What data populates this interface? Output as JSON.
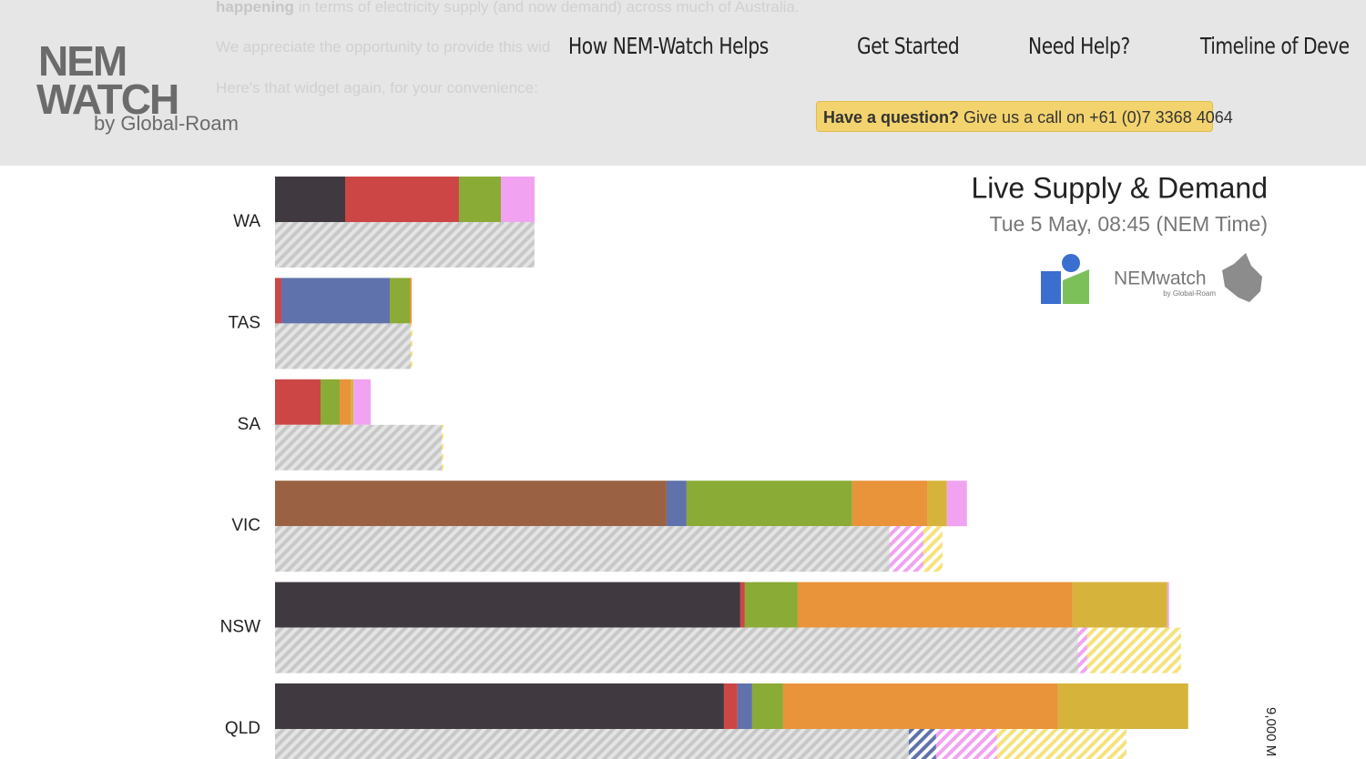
{
  "header": {
    "background_text": {
      "line1_bold": "happening",
      "line1": "in terms of electricity supply (and now demand) across much of Australia.",
      "line2": "We appreciate the opportunity to provide this wid",
      "line3": "Here's that widget again, for your convenience:"
    },
    "logo": {
      "top": "NEM",
      "bottom": "WATCH",
      "by": "by Global-Roam"
    },
    "nav": [
      "How NEM-Watch Helps",
      "Get Started",
      "Need Help?",
      "Timeline of Deve"
    ],
    "banner": {
      "bold": "Have a question?",
      "text": "Give us a call on +61 (0)7 3368 4064"
    }
  },
  "chart_data": {
    "type": "stacked-bar",
    "title": "Live Supply & Demand",
    "subtitle": "Tue 5 May, 08:45 (NEM Time)",
    "brand": {
      "name": "NEMwatch",
      "by": "by Global-Roam"
    },
    "categories": [
      "WA",
      "TAS",
      "SA",
      "VIC",
      "NSW",
      "QLD"
    ],
    "xlim": [
      0,
      9000
    ],
    "xticks": [
      {
        "value": 9000,
        "label": "9,000 M"
      }
    ],
    "series": [
      {
        "stack": "supply",
        "color": "#403a40",
        "values": [
          634,
          0,
          0,
          0,
          4207,
          4059
        ]
      },
      {
        "stack": "supply",
        "color": "#9a6242",
        "values": [
          0,
          0,
          0,
          3540,
          0,
          0
        ]
      },
      {
        "stack": "supply",
        "color": "#cc4646",
        "values": [
          1029,
          58,
          412,
          0,
          41,
          123
        ]
      },
      {
        "stack": "supply",
        "color": "#5f72ab",
        "values": [
          0,
          980,
          0,
          181,
          0,
          132
        ]
      },
      {
        "stack": "supply",
        "color": "#8aab36",
        "values": [
          379,
          181,
          173,
          1498,
          478,
          280
        ]
      },
      {
        "stack": "supply",
        "color": "#e9933a",
        "values": [
          0,
          16,
          99,
          683,
          2486,
          2486
        ]
      },
      {
        "stack": "supply",
        "color": "#d6b43c",
        "values": [
          0,
          0,
          25,
          173,
          856,
          1177
        ]
      },
      {
        "stack": "supply",
        "color": "#f1a3f1",
        "values": [
          305,
          0,
          156,
          181,
          16,
          0
        ]
      },
      {
        "stack": "demand",
        "color": "#c8c8c8",
        "values": [
          2346,
          1227,
          1507,
          5557,
          7262,
          5730
        ]
      },
      {
        "stack": "demand",
        "color": "#5f72ab",
        "values": [
          0,
          0,
          0,
          0,
          0,
          247
        ]
      },
      {
        "stack": "demand",
        "color": "#f1a3f1",
        "values": [
          0,
          0,
          0,
          305,
          82,
          552
        ]
      },
      {
        "stack": "demand",
        "color": "#f5e27a",
        "values": [
          0,
          16,
          16,
          173,
          848,
          1169
        ]
      }
    ]
  }
}
